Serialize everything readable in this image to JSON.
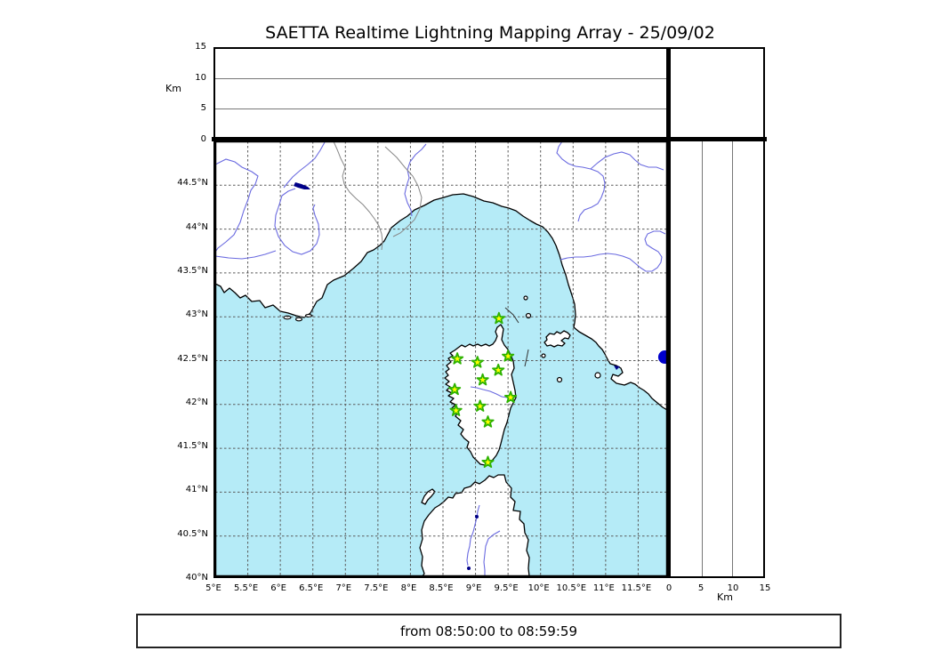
{
  "header": {
    "title": "SAETTA Realtime Lightning Mapping Array - 25/09/02"
  },
  "footer": {
    "text": "from 08:50:00 to 08:59:59"
  },
  "colors": {
    "sea": "#b5ebf7",
    "land": "#ffffff",
    "coast": "#000000",
    "river": "#6a6ae0",
    "country_border": "#888888",
    "lake": "#000088",
    "grid": "#5a5a5a",
    "station_fill": "#ffff00",
    "station_stroke": "#2db200",
    "detection": "#0000cc"
  },
  "chart_data": [
    {
      "type": "scatter",
      "panel": "altitude-vs-longitude",
      "ylabel": "Km",
      "ylim": [
        0,
        15
      ],
      "yticks": [
        0,
        5,
        10,
        15
      ],
      "grid_yticks": [
        5,
        10
      ],
      "xlim": [
        5,
        12
      ],
      "points": []
    },
    {
      "type": "scatter",
      "panel": "map",
      "xlim": [
        5,
        12
      ],
      "ylim": [
        40,
        45
      ],
      "xtick_values": [
        5,
        5.5,
        6,
        6.5,
        7,
        7.5,
        8,
        8.5,
        9,
        9.5,
        10,
        10.5,
        11,
        11.5
      ],
      "xtick_labels": [
        "5°E",
        "5.5°E",
        "6°E",
        "6.5°E",
        "7°E",
        "7.5°E",
        "8°E",
        "8.5°E",
        "9°E",
        "9.5°E",
        "10°E",
        "10.5°E",
        "11°E",
        "11.5°E"
      ],
      "ytick_values": [
        44.5,
        44,
        43.5,
        43,
        42.5,
        42,
        41.5,
        41,
        40.5,
        40
      ],
      "ytick_labels": [
        "44.5°N",
        "44°N",
        "43.5°N",
        "43°N",
        "42.5°N",
        "42°N",
        "41.5°N",
        "41°N",
        "40.5°N",
        "40°N"
      ],
      "grid_lons": [
        5.5,
        6,
        6.5,
        7,
        7.5,
        8,
        8.5,
        9,
        9.5,
        10,
        10.5,
        11,
        11.5
      ],
      "grid_lats": [
        40.5,
        41,
        41.5,
        42,
        42.5,
        43,
        43.5,
        44,
        44.5
      ],
      "stations": [
        {
          "lon": 9.36,
          "lat": 42.98
        },
        {
          "lon": 8.72,
          "lat": 42.52
        },
        {
          "lon": 9.03,
          "lat": 42.48
        },
        {
          "lon": 9.5,
          "lat": 42.55
        },
        {
          "lon": 9.35,
          "lat": 42.39
        },
        {
          "lon": 9.11,
          "lat": 42.28
        },
        {
          "lon": 8.68,
          "lat": 42.17
        },
        {
          "lon": 9.54,
          "lat": 42.08
        },
        {
          "lon": 9.07,
          "lat": 41.98
        },
        {
          "lon": 8.7,
          "lat": 41.93
        },
        {
          "lon": 9.19,
          "lat": 41.8
        },
        {
          "lon": 9.19,
          "lat": 41.34
        }
      ],
      "detections": [
        {
          "lon": 11.91,
          "lat": 42.54
        }
      ]
    },
    {
      "type": "scatter",
      "panel": "altitude-vs-latitude",
      "xlabel": "Km",
      "xlim": [
        0,
        15
      ],
      "xticks": [
        0,
        5,
        10,
        15
      ],
      "grid_xticks": [
        5,
        10
      ],
      "ylim": [
        40,
        45
      ],
      "points": []
    }
  ]
}
